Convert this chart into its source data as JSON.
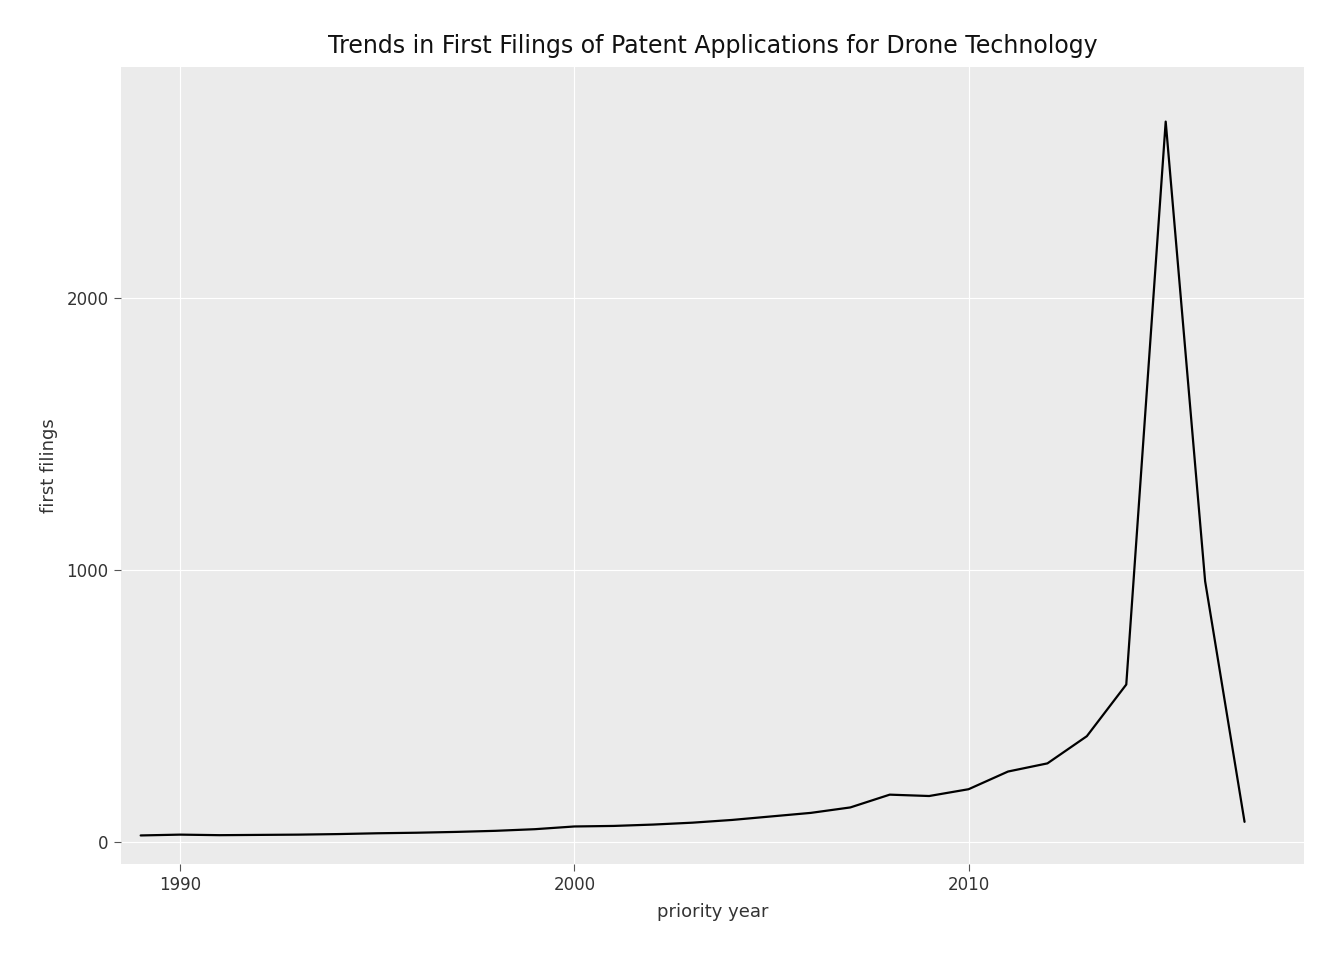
{
  "title": "Trends in First Filings of Patent Applications for Drone Technology",
  "xlabel": "priority year",
  "ylabel": "first filings",
  "figure_bg_color": "#FFFFFF",
  "panel_bg_color": "#EBEBEB",
  "line_color": "#000000",
  "line_width": 1.6,
  "grid_color": "#FFFFFF",
  "years": [
    1989,
    1990,
    1991,
    1992,
    1993,
    1994,
    1995,
    1996,
    1997,
    1998,
    1999,
    2000,
    2001,
    2002,
    2003,
    2004,
    2005,
    2006,
    2007,
    2008,
    2009,
    2010,
    2011,
    2012,
    2013,
    2014,
    2015,
    2016,
    2017
  ],
  "values": [
    25,
    28,
    26,
    27,
    28,
    30,
    33,
    35,
    38,
    42,
    48,
    58,
    60,
    65,
    72,
    82,
    95,
    108,
    128,
    175,
    170,
    195,
    260,
    290,
    390,
    580,
    2650,
    960,
    75
  ],
  "yticks": [
    0,
    1000,
    2000
  ],
  "xticks": [
    1990,
    2000,
    2010
  ],
  "ylim": [
    -80,
    2850
  ],
  "xlim": [
    1988.5,
    2018.5
  ],
  "title_fontsize": 17,
  "axis_label_fontsize": 13,
  "tick_fontsize": 12
}
